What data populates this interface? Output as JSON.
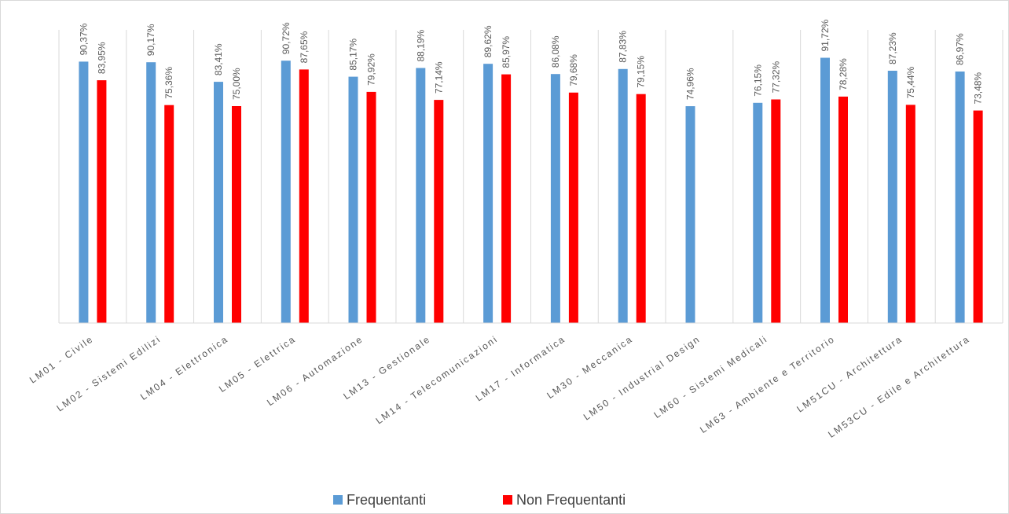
{
  "chart_data": {
    "type": "bar",
    "title": "",
    "xlabel": "",
    "ylabel": "",
    "ylim": [
      0,
      100
    ],
    "grid": "vertical category separators",
    "legend_position": "bottom",
    "categories": [
      "LM01 - Civile",
      "LM02 - Sistemi Edilizi",
      "LM04 - Elettronica",
      "LM05 - Elettrica",
      "LM06 - Automazione",
      "LM13 - Gestionale",
      "LM14 - Telecomunicazioni",
      "LM17 - Informatica",
      "LM30 - Meccanica",
      "LM50 - Industrial Design",
      "LM60 - Sistemi Medicali",
      "LM63 - Ambiente e Territorio",
      "LM51CU - Architettura",
      "LM53CU - Edile e Architettura"
    ],
    "series": [
      {
        "name": "Frequentanti",
        "color": "#5b9bd5",
        "values": [
          90.37,
          90.17,
          83.41,
          90.72,
          85.17,
          88.19,
          89.62,
          86.08,
          87.83,
          74.96,
          76.15,
          91.72,
          87.23,
          86.97
        ],
        "labels": [
          "90,37%",
          "90,17%",
          "83,41%",
          "90,72%",
          "85,17%",
          "88,19%",
          "89,62%",
          "86,08%",
          "87,83%",
          "74,96%",
          "76,15%",
          "91,72%",
          "87,23%",
          "86,97%"
        ]
      },
      {
        "name": "Non Frequentanti",
        "color": "#ff0000",
        "values": [
          83.95,
          75.36,
          75.0,
          87.65,
          79.92,
          77.14,
          85.97,
          79.68,
          79.15,
          null,
          77.32,
          78.28,
          75.44,
          73.48
        ],
        "labels": [
          "83,95%",
          "75,36%",
          "75,00%",
          "87,65%",
          "79,92%",
          "77,14%",
          "85,97%",
          "79,68%",
          "79,15%",
          "",
          "77,32%",
          "78,28%",
          "75,44%",
          "73,48%"
        ]
      }
    ]
  },
  "colors": {
    "background": "#ffffff",
    "separator": "#d9d9d9",
    "axis": "#d9d9d9",
    "text": "#595959"
  }
}
